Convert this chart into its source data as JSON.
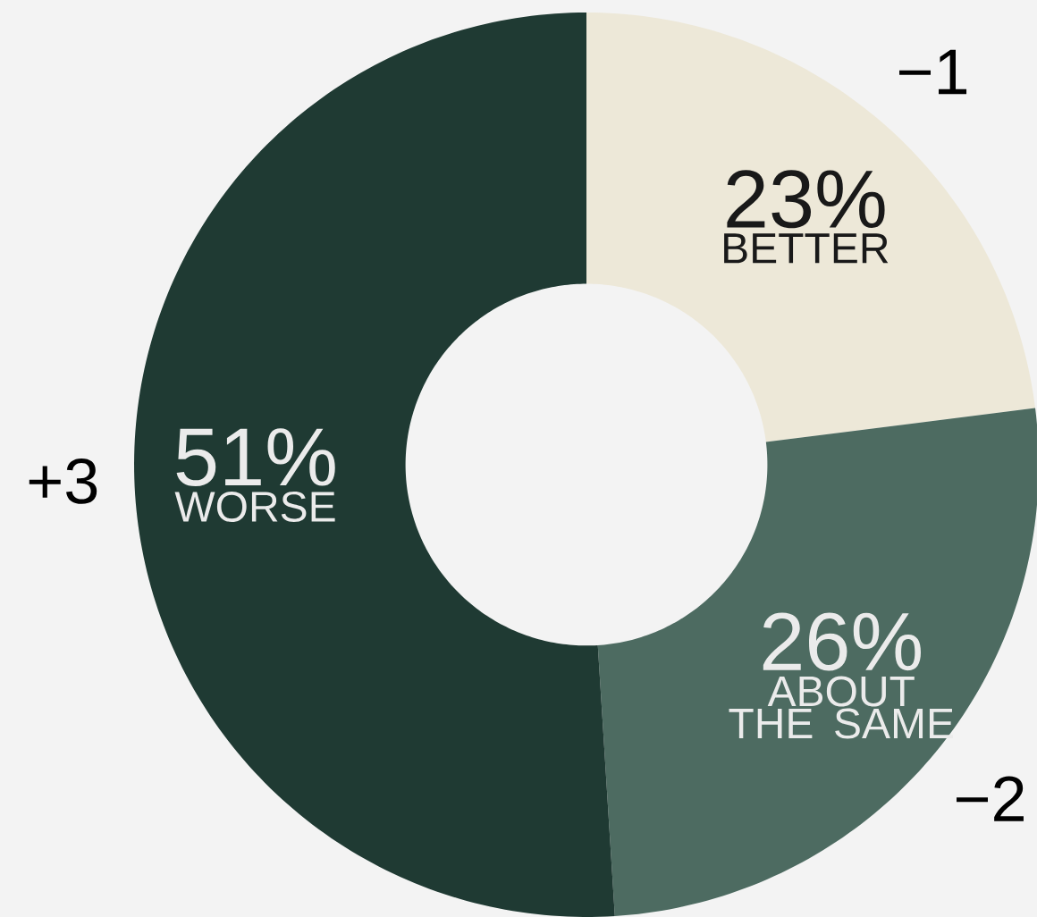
{
  "chart_data": {
    "type": "donut",
    "categories": [
      "BETTER",
      "ABOUT THE SAME",
      "WORSE"
    ],
    "values": [
      23,
      26,
      51
    ],
    "value_labels": [
      "23%",
      "26%",
      "51%"
    ],
    "colors": [
      "#ede8d8",
      "#4d6b61",
      "#1f3a33"
    ],
    "annotations": [
      {
        "text": "−1",
        "x": "BETTER"
      },
      {
        "text": "−2",
        "x": "ABOUT THE SAME"
      },
      {
        "text": "+3",
        "x": "WORSE"
      }
    ]
  }
}
